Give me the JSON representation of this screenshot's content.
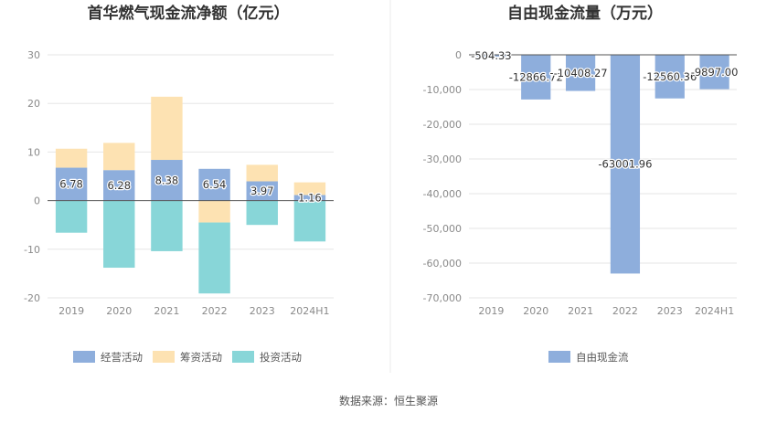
{
  "source_label": "数据来源：恒生聚源",
  "colors": {
    "operating": "#8eaedc",
    "financing": "#fde2b2",
    "investing": "#88d6d8",
    "free_cash_flow": "#8eaedc",
    "grid": "#e6e6e6",
    "zero_line": "#555555"
  },
  "chart_data": [
    {
      "type": "bar",
      "stacked": true,
      "title": "首华燃气现金流净额（亿元）",
      "categories": [
        "2019",
        "2020",
        "2021",
        "2022",
        "2023",
        "2024H1"
      ],
      "ylim": [
        -20,
        30
      ],
      "yticks": [
        "30",
        "20",
        "10",
        "0",
        "-10",
        "-20"
      ],
      "ytick_values": [
        30,
        20,
        10,
        0,
        -10,
        -20
      ],
      "grid": true,
      "legend_position": "bottom",
      "series": [
        {
          "name": "经营活动",
          "color": "#8eaedc",
          "values": [
            6.78,
            6.28,
            8.38,
            6.54,
            3.97,
            1.16
          ],
          "labels": [
            "6.78",
            "6.28",
            "8.38",
            "6.54",
            "3.97",
            "1.16"
          ]
        },
        {
          "name": "筹资活动",
          "color": "#fde2b2",
          "values": [
            3.9,
            5.6,
            13.0,
            -4.5,
            3.4,
            2.6
          ]
        },
        {
          "name": "投资活动",
          "color": "#88d6d8",
          "values": [
            -6.6,
            -13.8,
            -10.4,
            -14.6,
            -5.0,
            -8.4
          ]
        }
      ]
    },
    {
      "type": "bar",
      "title": "自由现金流量（万元）",
      "categories": [
        "2019",
        "2020",
        "2021",
        "2022",
        "2023",
        "2024H1"
      ],
      "ylim": [
        -70000,
        0
      ],
      "yticks": [
        "0",
        "-10,000",
        "-20,000",
        "-30,000",
        "-40,000",
        "-50,000",
        "-60,000",
        "-70,000"
      ],
      "ytick_values": [
        0,
        -10000,
        -20000,
        -30000,
        -40000,
        -50000,
        -60000,
        -70000
      ],
      "grid": true,
      "legend_position": "bottom",
      "series": [
        {
          "name": "自由现金流",
          "color": "#8eaedc",
          "values": [
            -504.33,
            -12866.72,
            -10408.27,
            -63001.96,
            -12560.36,
            -9897.0
          ],
          "labels": [
            "-504.33",
            "-12866.72",
            "-10408.27",
            "-63001.96",
            "-12560.36",
            "-9897.00"
          ]
        }
      ]
    }
  ]
}
